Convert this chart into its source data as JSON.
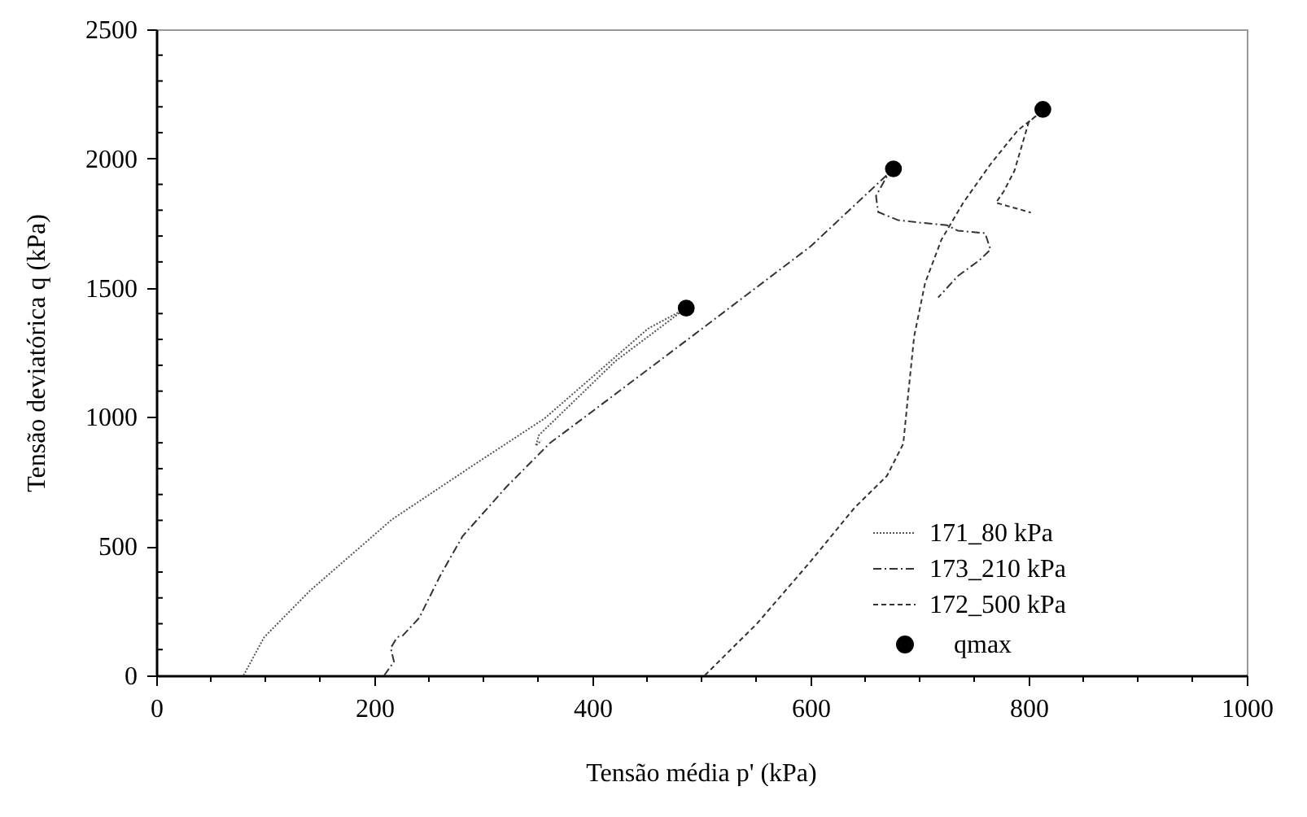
{
  "chart_data": {
    "type": "line",
    "xlabel": "Tensão média p' (kPa)",
    "ylabel": "Tensão deviatórica q  (kPa)",
    "xlim": [
      0,
      1000
    ],
    "ylim": [
      0,
      2500
    ],
    "xticks": [
      0,
      {
        "value": 50,
        "label": null
      },
      {
        "value": 100,
        "label": null
      },
      {
        "value": 150,
        "label": null
      },
      200,
      {
        "value": 250,
        "label": null
      },
      {
        "value": 300,
        "label": null
      },
      {
        "value": 350,
        "label": null
      },
      400,
      {
        "value": 450,
        "label": null
      },
      {
        "value": 500,
        "label": null
      },
      {
        "value": 550,
        "label": null
      },
      600,
      {
        "value": 650,
        "label": null
      },
      {
        "value": 700,
        "label": null
      },
      {
        "value": 750,
        "label": null
      },
      800,
      {
        "value": 850,
        "label": null
      },
      {
        "value": 900,
        "label": null
      },
      {
        "value": 950,
        "label": null
      },
      1000
    ],
    "yticks": [
      0,
      {
        "value": 100,
        "label": null
      },
      {
        "value": 200,
        "label": null
      },
      {
        "value": 300,
        "label": null
      },
      {
        "value": 400,
        "label": null
      },
      500,
      {
        "value": 600,
        "label": null
      },
      {
        "value": 700,
        "label": null
      },
      {
        "value": 800,
        "label": null
      },
      {
        "value": 900,
        "label": null
      },
      1000,
      {
        "value": 1100,
        "label": null
      },
      {
        "value": 1200,
        "label": null
      },
      {
        "value": 1300,
        "label": null
      },
      {
        "value": 1400,
        "label": null
      },
      1500,
      {
        "value": 1600,
        "label": null
      },
      {
        "value": 1700,
        "label": null
      },
      {
        "value": 1800,
        "label": null
      },
      {
        "value": 1900,
        "label": null
      },
      2000,
      {
        "value": 2100,
        "label": null
      },
      {
        "value": 2200,
        "label": null
      },
      {
        "value": 2300,
        "label": null
      },
      {
        "value": 2400,
        "label": null
      },
      2500
    ],
    "grid": false,
    "legend": "bottom right",
    "series": [
      {
        "name": "171_80 kPa",
        "color": "#555555",
        "line_style": "dotted",
        "marker": "none",
        "x": [
          80,
          99,
          141,
          216,
          291,
          356,
          451,
          486,
          481,
          421,
          351,
          348,
          353
        ],
        "values": [
          0,
          148,
          328,
          603,
          814,
          994,
          1342,
          1421,
          1406,
          1216,
          930,
          888,
          909
        ]
      },
      {
        "name": "173_210 kPa",
        "color": "#333333",
        "line_style": "dashdot",
        "marker": "none",
        "x": [
          209,
          218,
          215,
          221,
          226,
          241,
          261,
          281,
          321,
          361,
          401,
          500,
          600,
          676,
          670,
          660,
          662,
          680,
          700,
          725,
          735,
          760,
          765,
          755,
          735,
          717
        ],
        "values": [
          0,
          53,
          106,
          148,
          154,
          222,
          391,
          539,
          729,
          899,
          1025,
          1340,
          1660,
          1960,
          1931,
          1855,
          1793,
          1762,
          1752,
          1742,
          1721,
          1711,
          1648,
          1607,
          1545,
          1462
        ]
      },
      {
        "name": "172_500 kPa",
        "color": "#333333",
        "line_style": "dashed",
        "marker": "none",
        "x": [
          503,
          551,
          600,
          640,
          670,
          685,
          690,
          695,
          705,
          720,
          740,
          765,
          790,
          807,
          813,
          800,
          787,
          777,
          770,
          802
        ],
        "values": [
          0,
          201,
          441,
          647,
          772,
          896,
          1107,
          1312,
          1518,
          1686,
          1829,
          1978,
          2109,
          2165,
          2190,
          2140,
          1953,
          1872,
          1829,
          1791
        ]
      },
      {
        "name": "qmax",
        "type": "scatter",
        "color": "#000000",
        "marker": "circle",
        "x": [
          486,
          676,
          813
        ],
        "values": [
          1421,
          1960,
          2190
        ]
      }
    ]
  }
}
